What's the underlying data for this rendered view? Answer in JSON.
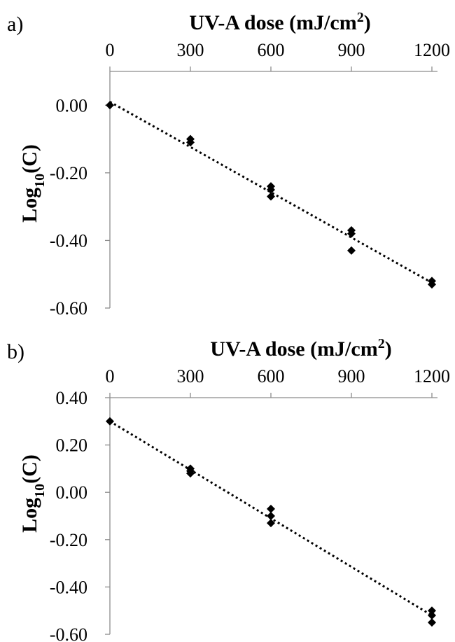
{
  "chart_data": [
    {
      "type": "scatter",
      "panel_label": "a)",
      "title": "",
      "xlabel": "UV-A dose (mJ/cm²)",
      "xlabel_main": "UV-A dose (mJ/cm",
      "xlabel_sup": "2",
      "xlabel_tail": ")",
      "ylabel_main": "Log",
      "ylabel_sub": "10",
      "ylabel_tail": "(C)",
      "x_axis_position": "top",
      "xlim": [
        0,
        1200
      ],
      "ylim": [
        -0.6,
        0.1
      ],
      "x_ticks": [
        0,
        300,
        600,
        900,
        1200
      ],
      "x_tick_labels": [
        "0",
        "300",
        "600",
        "900",
        "1200"
      ],
      "y_ticks": [
        0.0,
        -0.2,
        -0.4,
        -0.6
      ],
      "y_tick_labels": [
        "0.00",
        "-0.20",
        "-0.40",
        "-0.60"
      ],
      "grid": false,
      "marker": "diamond",
      "color": "#000000",
      "points": [
        {
          "x": 0,
          "y": 0.0
        },
        {
          "x": 300,
          "y": -0.1
        },
        {
          "x": 300,
          "y": -0.11
        },
        {
          "x": 600,
          "y": -0.24
        },
        {
          "x": 600,
          "y": -0.25
        },
        {
          "x": 600,
          "y": -0.27
        },
        {
          "x": 900,
          "y": -0.37
        },
        {
          "x": 900,
          "y": -0.38
        },
        {
          "x": 900,
          "y": -0.43
        },
        {
          "x": 1200,
          "y": -0.52
        },
        {
          "x": 1200,
          "y": -0.53
        }
      ],
      "trendline": {
        "style": "dotted",
        "x": [
          0,
          1200
        ],
        "y": [
          0.01,
          -0.525
        ]
      }
    },
    {
      "type": "scatter",
      "panel_label": "b)",
      "title": "",
      "xlabel": "UV-A dose (mJ/cm²)",
      "xlabel_main": "UV-A dose (mJ/cm",
      "xlabel_sup": "2",
      "xlabel_tail": ")",
      "ylabel_main": "Log",
      "ylabel_sub": "10",
      "ylabel_tail": "(C)",
      "x_axis_position": "top",
      "xlim": [
        0,
        1200
      ],
      "ylim": [
        -0.6,
        0.4
      ],
      "x_ticks": [
        0,
        300,
        600,
        900,
        1200
      ],
      "x_tick_labels": [
        "0",
        "300",
        "600",
        "900",
        "1200"
      ],
      "y_ticks": [
        0.4,
        0.2,
        0.0,
        -0.2,
        -0.4,
        -0.6
      ],
      "y_tick_labels": [
        "0.40",
        "0.20",
        "0.00",
        "-0.20",
        "-0.40",
        "-0.60"
      ],
      "grid": false,
      "marker": "diamond",
      "color": "#000000",
      "points": [
        {
          "x": 0,
          "y": 0.3
        },
        {
          "x": 300,
          "y": 0.1
        },
        {
          "x": 300,
          "y": 0.09
        },
        {
          "x": 300,
          "y": 0.08
        },
        {
          "x": 600,
          "y": -0.07
        },
        {
          "x": 600,
          "y": -0.1
        },
        {
          "x": 600,
          "y": -0.13
        },
        {
          "x": 1200,
          "y": -0.5
        },
        {
          "x": 1200,
          "y": -0.52
        },
        {
          "x": 1200,
          "y": -0.55
        }
      ],
      "trendline": {
        "style": "dotted",
        "x": [
          0,
          1200
        ],
        "y": [
          0.3,
          -0.52
        ]
      }
    }
  ]
}
